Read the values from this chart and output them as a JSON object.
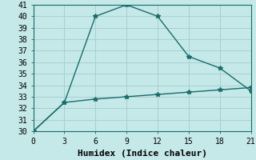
{
  "title": "",
  "xlabel": "Humidex (Indice chaleur)",
  "ylabel": "",
  "background_color": "#c5e8e8",
  "grid_color": "#a8d0d0",
  "line_color": "#1a6b6b",
  "xlim": [
    0,
    21
  ],
  "ylim": [
    30,
    41
  ],
  "xticks": [
    0,
    3,
    6,
    9,
    12,
    15,
    18,
    21
  ],
  "yticks": [
    30,
    31,
    32,
    33,
    34,
    35,
    36,
    37,
    38,
    39,
    40,
    41
  ],
  "line1_x": [
    0,
    3,
    6,
    9,
    12,
    15,
    18,
    21
  ],
  "line1_y": [
    30,
    32.5,
    40,
    41,
    40,
    36.5,
    35.5,
    33.5
  ],
  "line2_x": [
    0,
    3,
    6,
    9,
    12,
    15,
    18,
    21
  ],
  "line2_y": [
    30,
    32.5,
    32.8,
    33.0,
    33.2,
    33.4,
    33.6,
    33.8
  ],
  "marker": "*",
  "markersize": 4,
  "linewidth": 1.0,
  "font_family": "monospace",
  "xlabel_fontsize": 8,
  "tick_fontsize": 7
}
